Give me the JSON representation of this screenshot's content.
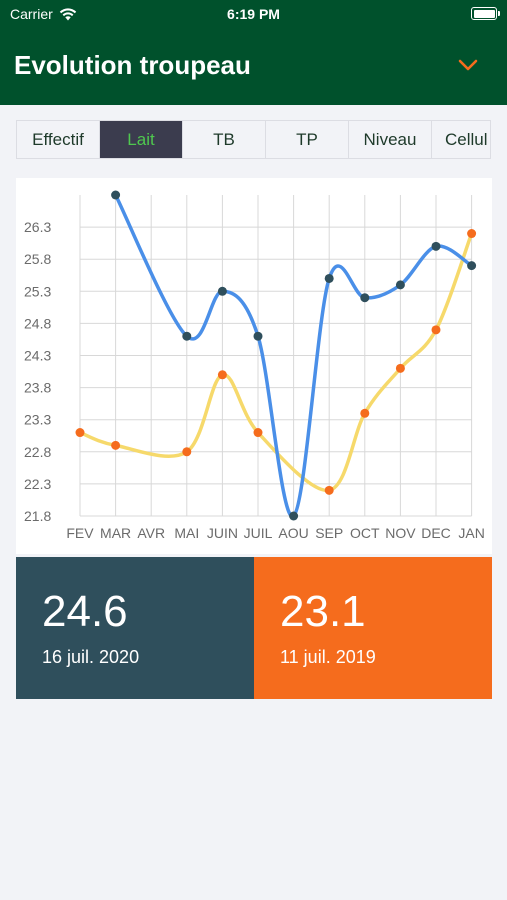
{
  "status_bar": {
    "carrier": "Carrier",
    "time": "6:19 PM"
  },
  "header": {
    "title": "Evolution troupeau"
  },
  "tabs": [
    {
      "label": "Effectif",
      "active": false
    },
    {
      "label": "Lait",
      "active": true
    },
    {
      "label": "TB",
      "active": false
    },
    {
      "label": "TP",
      "active": false
    },
    {
      "label": "Niveau",
      "active": false
    },
    {
      "label": "Cellul",
      "active": false
    }
  ],
  "colors": {
    "header": "#00512c",
    "series_current": "#4a8fe8",
    "series_previous": "#f6d96b",
    "dot_current": "#2f4f5c",
    "dot_previous": "#f56c1d"
  },
  "chart_data": {
    "type": "line",
    "x": [
      "FEV",
      "MAR",
      "AVR",
      "MAI",
      "JUIN",
      "JUIL",
      "AOU",
      "SEP",
      "OCT",
      "NOV",
      "DEC",
      "JAN"
    ],
    "yticks": [
      "26.3",
      "25.8",
      "25.3",
      "24.8",
      "24.3",
      "23.8",
      "23.3",
      "22.8",
      "22.3",
      "21.8"
    ],
    "ylim": [
      21.8,
      26.8
    ],
    "grid": true,
    "series": [
      {
        "values": [
          null,
          26.8,
          null,
          24.6,
          25.3,
          24.6,
          21.8,
          25.5,
          25.2,
          25.4,
          26.0,
          25.7
        ]
      },
      {
        "values": [
          23.1,
          22.9,
          null,
          22.8,
          24.0,
          23.1,
          null,
          22.2,
          23.4,
          24.1,
          24.7,
          26.2
        ]
      }
    ]
  },
  "stats": [
    {
      "value": "24.6",
      "date": "16 juil. 2020"
    },
    {
      "value": "23.1",
      "date": "11 juil. 2019"
    }
  ]
}
